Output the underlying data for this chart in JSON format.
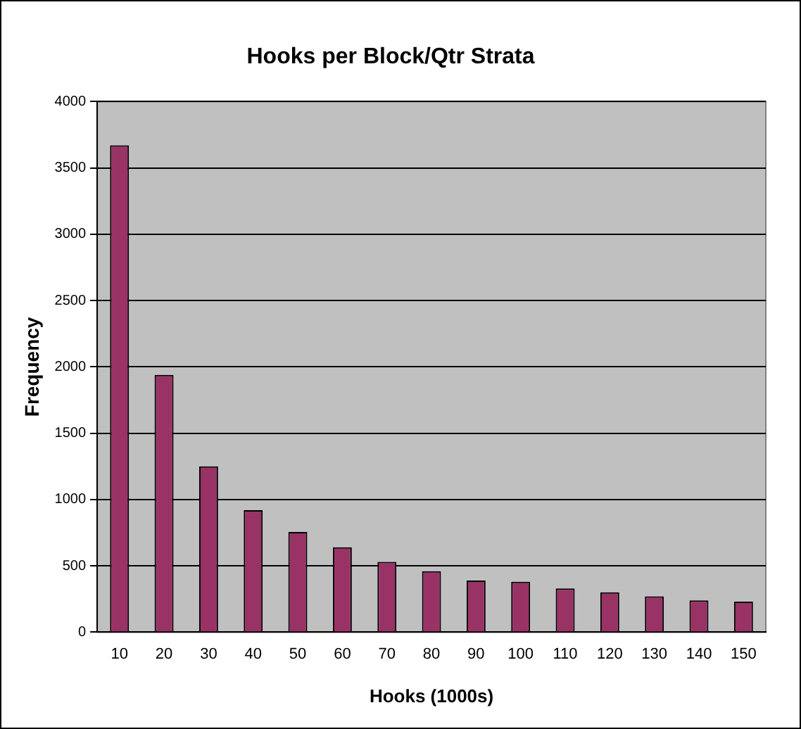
{
  "chart_data": {
    "type": "bar",
    "title": "Hooks per Block/Qtr Strata",
    "xlabel": "Hooks (1000s)",
    "ylabel": "Frequency",
    "categories": [
      "10",
      "20",
      "30",
      "40",
      "50",
      "60",
      "70",
      "80",
      "90",
      "100",
      "110",
      "120",
      "130",
      "140",
      "150"
    ],
    "values": [
      3670,
      1940,
      1250,
      920,
      755,
      640,
      530,
      460,
      390,
      380,
      330,
      300,
      270,
      240,
      230
    ],
    "color": "#993366",
    "ylim": [
      0,
      4000
    ],
    "yticks": [
      0,
      500,
      1000,
      1500,
      2000,
      2500,
      3000,
      3500,
      4000
    ],
    "grid": "y",
    "legend": false
  }
}
